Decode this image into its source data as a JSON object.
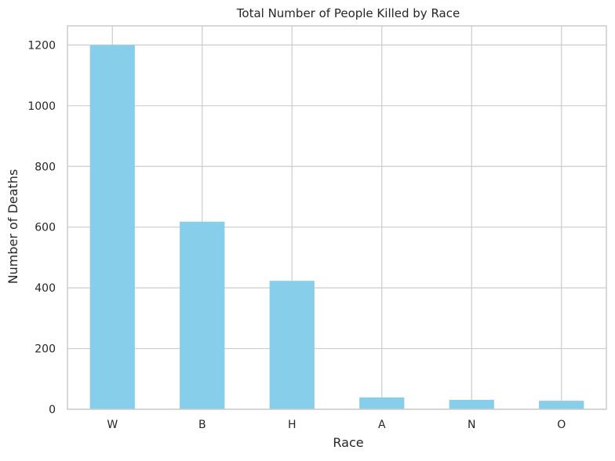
{
  "chart_data": {
    "type": "bar",
    "title": "Total Number of People Killed by Race",
    "xlabel": "Race",
    "ylabel": "Number of Deaths",
    "categories": [
      "W",
      "B",
      "H",
      "A",
      "N",
      "O"
    ],
    "values": [
      1200,
      618,
      423,
      39,
      31,
      28
    ],
    "ylim": [
      0,
      1263
    ],
    "yticks": [
      0,
      200,
      400,
      600,
      800,
      1000,
      1200
    ],
    "grid": true,
    "legend": "none",
    "colors": {
      "bar": "#87ceeb",
      "grid": "#cccccc",
      "axis": "#cccccc",
      "text": "#262626",
      "background": "#ffffff"
    }
  }
}
